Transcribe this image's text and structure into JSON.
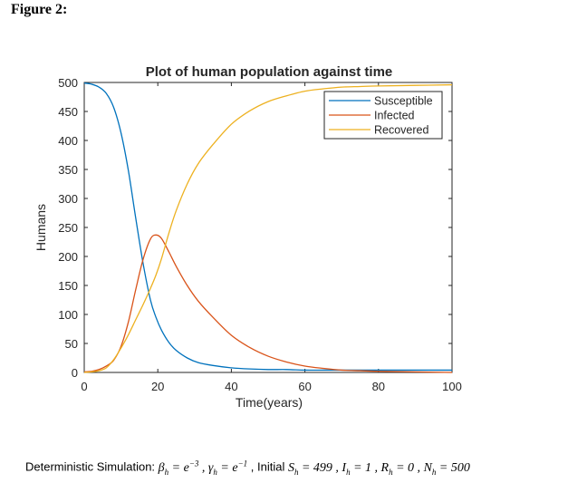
{
  "figure_label": "Figure 2:",
  "chart_data": {
    "type": "line",
    "title": "Plot of human population against time",
    "xlabel": "Time(years)",
    "ylabel": "Humans",
    "xlim": [
      0,
      100
    ],
    "ylim": [
      0,
      500
    ],
    "xticks": [
      0,
      20,
      40,
      60,
      80,
      100
    ],
    "yticks": [
      0,
      50,
      100,
      150,
      200,
      250,
      300,
      350,
      400,
      450,
      500
    ],
    "grid": false,
    "legend_position": "top-right",
    "x": [
      0,
      2,
      4,
      6,
      8,
      10,
      12,
      14,
      16,
      18,
      19.5,
      21,
      23,
      25,
      28,
      31,
      35,
      40,
      45,
      50,
      55,
      60,
      65,
      70,
      75,
      80,
      90,
      100
    ],
    "series": [
      {
        "name": "Susceptible",
        "color": "#0072BD",
        "values": [
          499,
          497,
          492,
          481,
          457,
          413,
          348,
          266,
          188,
          125,
          95,
          73,
          52,
          38,
          25,
          17,
          12,
          8,
          6,
          5,
          5,
          4,
          4,
          4,
          4,
          4,
          4,
          4
        ]
      },
      {
        "name": "Infected",
        "color": "#D95319",
        "values": [
          1,
          2,
          5,
          11,
          21,
          45,
          87,
          143,
          195,
          230,
          237,
          231,
          208,
          183,
          150,
          123,
          95,
          64,
          43,
          28,
          18,
          11,
          7,
          4,
          3,
          2,
          1,
          0
        ]
      },
      {
        "name": "Recovered",
        "color": "#EDB120",
        "values": [
          0,
          1,
          3,
          8,
          22,
          42,
          65,
          91,
          117,
          145,
          168,
          196,
          240,
          279,
          325,
          360,
          393,
          428,
          451,
          467,
          477,
          485,
          489,
          492,
          493,
          494,
          495,
          496
        ]
      }
    ]
  },
  "caption": {
    "prefix": "Deterministic Simulation: ",
    "beta_sym": "β",
    "beta_sub": "h",
    "beta_eq": " = ",
    "beta_base": "e",
    "beta_exp": "−3",
    "sep1": " , ",
    "gamma_sym": "γ",
    "gamma_sub": "h",
    "gamma_eq": " = ",
    "gamma_base": "e",
    "gamma_exp": "−1",
    "initial": " , Initial ",
    "s_sym": "S",
    "s_sub": "h",
    "s_val": " = 499 , ",
    "i_sym": "I",
    "i_sub": "h",
    "i_val": " = 1 , ",
    "r_sym": "R",
    "r_sub": "h",
    "r_val": " = 0 , ",
    "n_sym": "N",
    "n_sub": "h",
    "n_val": " = 500"
  }
}
